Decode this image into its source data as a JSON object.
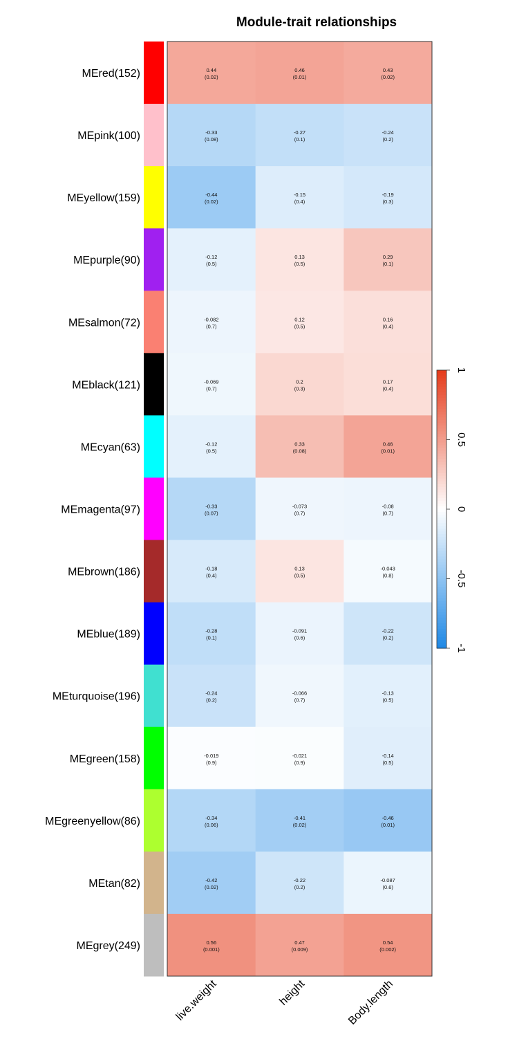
{
  "chart_data": {
    "type": "heatmap",
    "title": "Module-trait relationships",
    "columns": [
      "live.weight",
      "height",
      "Body.length"
    ],
    "rows": [
      {
        "label": "MEred(152)",
        "color": "#FF0000",
        "values": [
          0.44,
          0.46,
          0.43
        ],
        "pvalues": [
          "(0.02)",
          "(0.01)",
          "(0.02)"
        ]
      },
      {
        "label": "MEpink(100)",
        "color": "#FFC0CB",
        "values": [
          -0.33,
          -0.27,
          -0.24
        ],
        "pvalues": [
          "(0.08)",
          "(0.1)",
          "(0.2)"
        ]
      },
      {
        "label": "MEyellow(159)",
        "color": "#FFFF00",
        "values": [
          -0.44,
          -0.15,
          -0.19
        ],
        "pvalues": [
          "(0.02)",
          "(0.4)",
          "(0.3)"
        ]
      },
      {
        "label": "MEpurple(90)",
        "color": "#A020F0",
        "values": [
          -0.12,
          0.13,
          0.29
        ],
        "pvalues": [
          "(0.5)",
          "(0.5)",
          "(0.1)"
        ]
      },
      {
        "label": "MEsalmon(72)",
        "color": "#FA8072",
        "values": [
          -0.082,
          0.12,
          0.16
        ],
        "pvalues": [
          "(0.7)",
          "(0.5)",
          "(0.4)"
        ]
      },
      {
        "label": "MEblack(121)",
        "color": "#000000",
        "values": [
          -0.069,
          0.2,
          0.17
        ],
        "pvalues": [
          "(0.7)",
          "(0.3)",
          "(0.4)"
        ]
      },
      {
        "label": "MEcyan(63)",
        "color": "#00FFFF",
        "values": [
          -0.12,
          0.33,
          0.46
        ],
        "pvalues": [
          "(0.5)",
          "(0.08)",
          "(0.01)"
        ]
      },
      {
        "label": "MEmagenta(97)",
        "color": "#FF00FF",
        "values": [
          -0.33,
          -0.073,
          -0.08
        ],
        "pvalues": [
          "(0.07)",
          "(0.7)",
          "(0.7)"
        ]
      },
      {
        "label": "MEbrown(186)",
        "color": "#A52A2A",
        "values": [
          -0.18,
          0.13,
          -0.043
        ],
        "pvalues": [
          "(0.4)",
          "(0.5)",
          "(0.8)"
        ]
      },
      {
        "label": "MEblue(189)",
        "color": "#0000FF",
        "values": [
          -0.28,
          -0.091,
          -0.22
        ],
        "pvalues": [
          "(0.1)",
          "(0.6)",
          "(0.2)"
        ]
      },
      {
        "label": "MEturquoise(196)",
        "color": "#40E0D0",
        "values": [
          -0.24,
          -0.066,
          -0.13
        ],
        "pvalues": [
          "(0.2)",
          "(0.7)",
          "(0.5)"
        ]
      },
      {
        "label": "MEgreen(158)",
        "color": "#00FF00",
        "values": [
          -0.019,
          -0.021,
          -0.14
        ],
        "pvalues": [
          "(0.9)",
          "(0.9)",
          "(0.5)"
        ]
      },
      {
        "label": "MEgreenyellow(86)",
        "color": "#ADFF2F",
        "values": [
          -0.34,
          -0.41,
          -0.46
        ],
        "pvalues": [
          "(0.06)",
          "(0.02)",
          "(0.01)"
        ]
      },
      {
        "label": "MEtan(82)",
        "color": "#D2B48C",
        "values": [
          -0.42,
          -0.22,
          -0.087
        ],
        "pvalues": [
          "(0.02)",
          "(0.2)",
          "(0.6)"
        ]
      },
      {
        "label": "MEgrey(249)",
        "color": "#BEBEBE",
        "values": [
          0.56,
          0.47,
          0.54
        ],
        "pvalues": [
          "(0.001)",
          "(0.009)",
          "(0.002)"
        ]
      }
    ],
    "color_scale": {
      "min": -1,
      "max": 1,
      "low_color": "#1E88E5",
      "mid_color": "#FFFFFF",
      "high_color": "#E53A1A"
    },
    "colorbar_ticks": [
      "-1",
      "-0.5",
      "0",
      "0.5",
      "1"
    ],
    "colorbar_tick_values": [
      -1,
      -0.5,
      0,
      0.5,
      1
    ]
  }
}
